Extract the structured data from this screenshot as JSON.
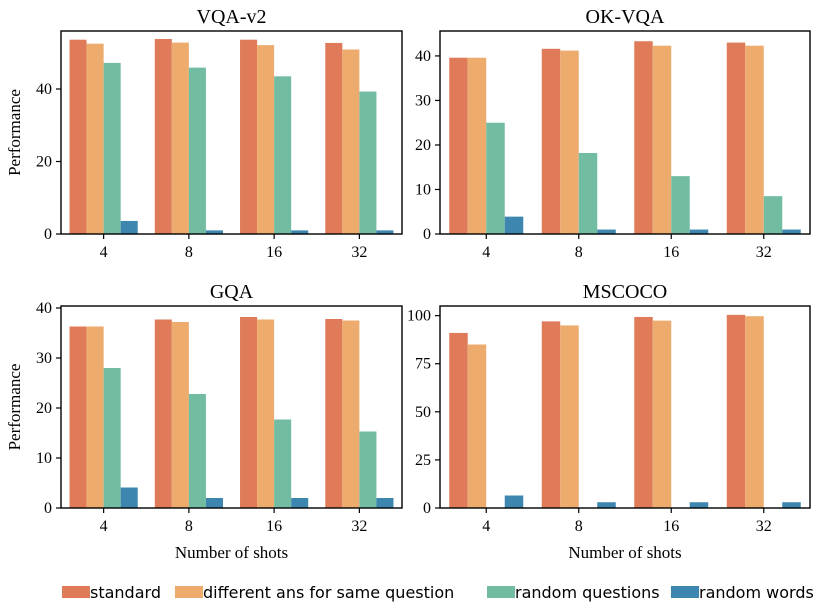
{
  "chart_data": [
    {
      "type": "bar",
      "title": "VQA-v2",
      "xlabel": "",
      "ylabel": "Performance",
      "categories": [
        "4",
        "8",
        "16",
        "32"
      ],
      "ylim": [
        0,
        56
      ],
      "yticks": [
        0,
        20,
        40
      ],
      "series": [
        {
          "name": "standard",
          "values": [
            53.6,
            53.8,
            53.6,
            52.7
          ]
        },
        {
          "name": "different ans for same question",
          "values": [
            52.5,
            52.8,
            52.1,
            50.9
          ]
        },
        {
          "name": "random questions",
          "values": [
            47.2,
            45.9,
            43.5,
            39.3
          ]
        },
        {
          "name": "random words",
          "values": [
            3.6,
            1.0,
            1.0,
            1.0
          ]
        }
      ]
    },
    {
      "type": "bar",
      "title": "OK-VQA",
      "xlabel": "",
      "ylabel": "",
      "categories": [
        "4",
        "8",
        "16",
        "32"
      ],
      "ylim": [
        0,
        45.6
      ],
      "yticks": [
        0,
        10,
        20,
        30,
        40
      ],
      "series": [
        {
          "name": "standard",
          "values": [
            39.6,
            41.6,
            43.3,
            43.0
          ]
        },
        {
          "name": "different ans for same question",
          "values": [
            39.6,
            41.2,
            42.3,
            42.3
          ]
        },
        {
          "name": "random questions",
          "values": [
            25.0,
            18.2,
            13.0,
            8.5
          ]
        },
        {
          "name": "random words",
          "values": [
            3.9,
            1.0,
            1.0,
            1.0
          ]
        }
      ]
    },
    {
      "type": "bar",
      "title": "GQA",
      "xlabel": "Number of shots",
      "ylabel": "Performance",
      "categories": [
        "4",
        "8",
        "16",
        "32"
      ],
      "ylim": [
        0,
        40.4
      ],
      "yticks": [
        0,
        10,
        20,
        30,
        40
      ],
      "series": [
        {
          "name": "standard",
          "values": [
            36.3,
            37.7,
            38.2,
            37.8
          ]
        },
        {
          "name": "different ans for same question",
          "values": [
            36.3,
            37.2,
            37.7,
            37.5
          ]
        },
        {
          "name": "random questions",
          "values": [
            28.0,
            22.8,
            17.7,
            15.3
          ]
        },
        {
          "name": "random words",
          "values": [
            4.1,
            2.0,
            2.0,
            2.0
          ]
        }
      ]
    },
    {
      "type": "bar",
      "title": "MSCOCO",
      "xlabel": "Number of shots",
      "ylabel": "",
      "categories": [
        "4",
        "8",
        "16",
        "32"
      ],
      "ylim": [
        0,
        105
      ],
      "yticks": [
        0,
        25,
        50,
        75,
        100
      ],
      "series": [
        {
          "name": "standard",
          "values": [
            91.0,
            97.0,
            99.3,
            100.4
          ]
        },
        {
          "name": "different ans for same question",
          "values": [
            85.0,
            94.9,
            97.4,
            99.7
          ]
        },
        {
          "name": "random questions",
          "values": [
            0,
            0,
            0,
            0
          ]
        },
        {
          "name": "random words",
          "values": [
            6.5,
            3.0,
            3.0,
            3.0
          ]
        }
      ]
    }
  ],
  "legend": {
    "position": "bottom",
    "items": [
      {
        "label": "standard",
        "color": "#e07b5a"
      },
      {
        "label": "different ans for same question",
        "color": "#eeab6e"
      },
      {
        "label": "random questions",
        "color": "#72bda1"
      },
      {
        "label": "random words",
        "color": "#3d86b0"
      }
    ]
  }
}
